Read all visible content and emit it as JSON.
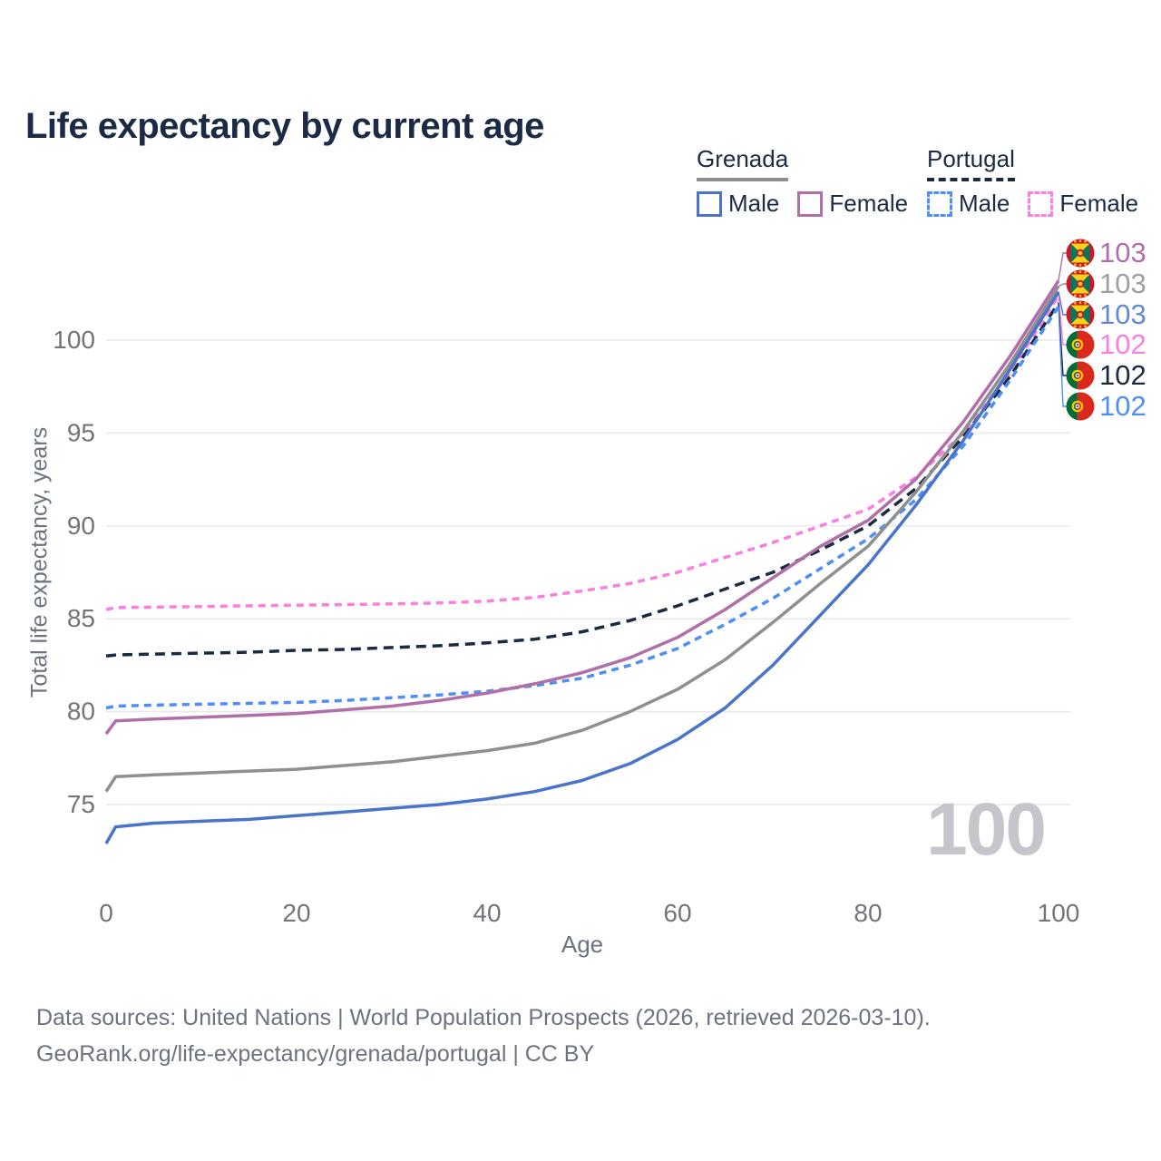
{
  "footer": {
    "line1": "Data sources: United Nations | World Population Prospects (2026, retrieved 2026-03-10).",
    "line2": "GeoRank.org/life-expectancy/grenada/portugal | CC BY"
  },
  "legend": {
    "groups": [
      {
        "label": "Grenada",
        "line_style": "solid",
        "items": [
          {
            "label": "Male",
            "color": "#4a74c9"
          },
          {
            "label": "Female",
            "color": "#b06fa8"
          }
        ]
      },
      {
        "label": "Portugal",
        "line_style": "dashed",
        "items": [
          {
            "label": "Male",
            "color": "#4e8ef7"
          },
          {
            "label": "Female",
            "color": "#fb7ee0"
          }
        ]
      }
    ]
  },
  "chart_data": {
    "type": "line",
    "title": "Life expectancy by current age",
    "xlabel": "Age",
    "ylabel": "Total life expectancy, years",
    "x_ticks": [
      0,
      20,
      40,
      60,
      80,
      100
    ],
    "y_ticks": [
      75,
      80,
      85,
      90,
      95,
      100
    ],
    "xlim": [
      0,
      100
    ],
    "ylim": [
      72,
      104
    ],
    "grid": "horizontal",
    "legend_position": "top-right",
    "watermark": "100",
    "x": [
      0,
      1,
      5,
      10,
      15,
      20,
      25,
      30,
      35,
      40,
      45,
      50,
      55,
      60,
      65,
      70,
      75,
      80,
      85,
      90,
      95,
      100
    ],
    "series": [
      {
        "id": "portugal-female",
        "name": "Portugal Female",
        "country": "Portugal",
        "sex": "Female",
        "color": "#fb7ee0",
        "label_color": "#fb7ee0",
        "line_style": "dashed",
        "flag": "portugal",
        "end_label": "102",
        "values": [
          85.5,
          85.6,
          85.63,
          85.66,
          85.7,
          85.73,
          85.76,
          85.8,
          85.85,
          85.95,
          86.15,
          86.5,
          86.9,
          87.5,
          88.3,
          89.1,
          90.0,
          90.9,
          92.6,
          95.0,
          98.3,
          102.4
        ]
      },
      {
        "id": "portugal-both",
        "name": "Portugal",
        "country": "Portugal",
        "sex": "Both sexes",
        "color": "#1b2a41",
        "label_color": "#1b2a41",
        "line_style": "dashed",
        "flag": "portugal",
        "end_label": "102",
        "values": [
          83.0,
          83.05,
          83.1,
          83.15,
          83.2,
          83.3,
          83.35,
          83.45,
          83.55,
          83.7,
          83.9,
          84.3,
          84.9,
          85.7,
          86.6,
          87.5,
          88.7,
          90.0,
          92.0,
          94.8,
          98.1,
          102.0
        ]
      },
      {
        "id": "portugal-male",
        "name": "Portugal Male",
        "country": "Portugal",
        "sex": "Male",
        "color": "#4e8ef7",
        "label_color": "#4e8ef7",
        "line_style": "dashed",
        "flag": "portugal",
        "end_label": "102",
        "values": [
          80.2,
          80.3,
          80.35,
          80.4,
          80.45,
          80.5,
          80.6,
          80.75,
          80.9,
          81.1,
          81.4,
          81.8,
          82.5,
          83.4,
          84.7,
          86.1,
          87.7,
          89.3,
          91.4,
          94.3,
          97.9,
          101.8
        ]
      },
      {
        "id": "grenada-both",
        "name": "Grenada",
        "country": "Grenada",
        "sex": "Both sexes",
        "color": "#8f8f8f",
        "label_color": "#9e9ea3",
        "line_style": "solid",
        "flag": "grenada",
        "end_label": "103",
        "values": [
          75.7,
          76.5,
          76.6,
          76.7,
          76.8,
          76.9,
          77.1,
          77.3,
          77.6,
          77.9,
          78.3,
          79.0,
          80.0,
          81.2,
          82.8,
          84.8,
          86.9,
          88.9,
          91.8,
          95.1,
          98.8,
          102.9
        ]
      },
      {
        "id": "grenada-male",
        "name": "Grenada Male",
        "country": "Grenada",
        "sex": "Male",
        "color": "#4a74c9",
        "label_color": "#6189d4",
        "line_style": "solid",
        "flag": "grenada",
        "end_label": "103",
        "values": [
          72.9,
          73.8,
          74.0,
          74.1,
          74.2,
          74.4,
          74.6,
          74.8,
          75.0,
          75.3,
          75.7,
          76.3,
          77.2,
          78.5,
          80.2,
          82.5,
          85.2,
          87.9,
          91.1,
          94.6,
          98.5,
          102.6
        ]
      },
      {
        "id": "grenada-female",
        "name": "Grenada Female",
        "country": "Grenada",
        "sex": "Female",
        "color": "#b06fa8",
        "label_color": "#b06fa8",
        "line_style": "solid",
        "flag": "grenada",
        "end_label": "103",
        "values": [
          78.8,
          79.5,
          79.6,
          79.7,
          79.8,
          79.9,
          80.1,
          80.3,
          80.6,
          81.0,
          81.5,
          82.1,
          82.9,
          84.0,
          85.5,
          87.2,
          88.9,
          90.3,
          92.5,
          95.6,
          99.2,
          103.2
        ]
      }
    ]
  }
}
